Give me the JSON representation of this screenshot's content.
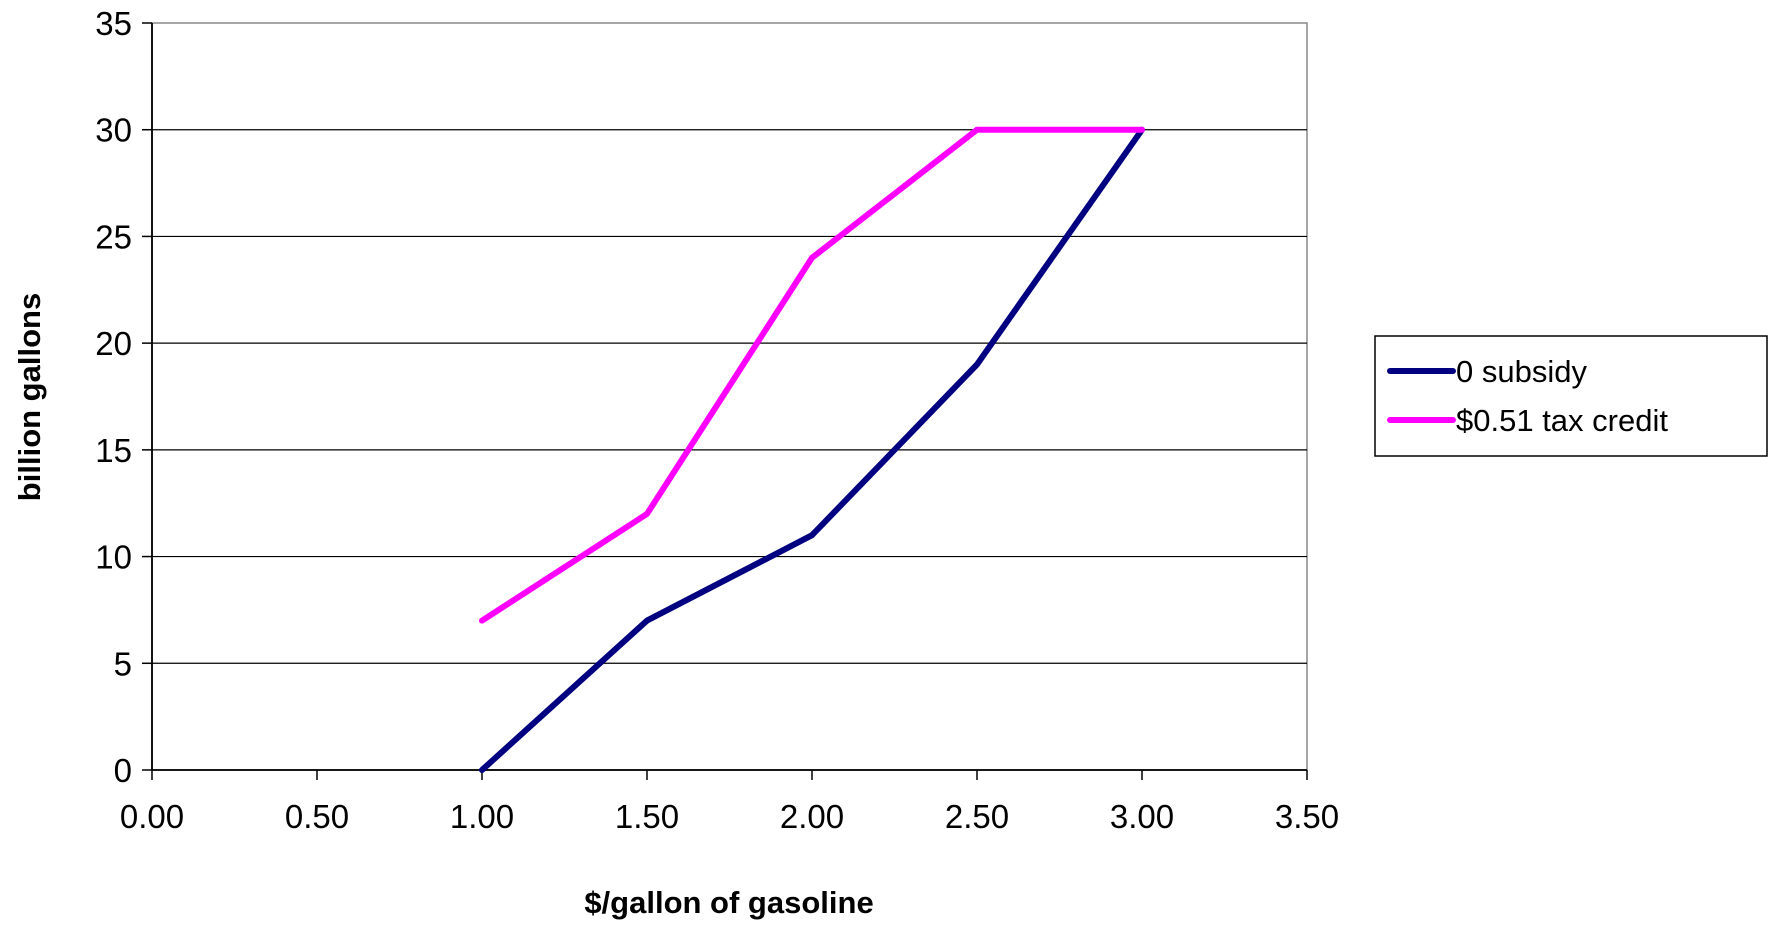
{
  "chart_data": {
    "type": "line",
    "title": "",
    "xlabel": "$/gallon of gasoline",
    "ylabel": "billion gallons",
    "xlim": [
      0,
      3.5
    ],
    "ylim": [
      0,
      35
    ],
    "x_ticks": [
      "0.00",
      "0.50",
      "1.00",
      "1.50",
      "2.00",
      "2.50",
      "3.00",
      "3.50"
    ],
    "y_ticks": [
      "0",
      "5",
      "10",
      "15",
      "20",
      "25",
      "30",
      "35"
    ],
    "grid": "horizontal",
    "legend_position": "right",
    "series": [
      {
        "name": "0 subsidy",
        "color": "#000080",
        "x": [
          1.0,
          1.5,
          2.0,
          2.5,
          3.0
        ],
        "y": [
          0,
          7,
          11,
          19,
          30
        ]
      },
      {
        "name": "$0.51 tax credit",
        "color": "#FF00FF",
        "x": [
          1.0,
          1.5,
          2.0,
          2.5,
          3.0
        ],
        "y": [
          7,
          12,
          24,
          30,
          30
        ]
      }
    ]
  }
}
